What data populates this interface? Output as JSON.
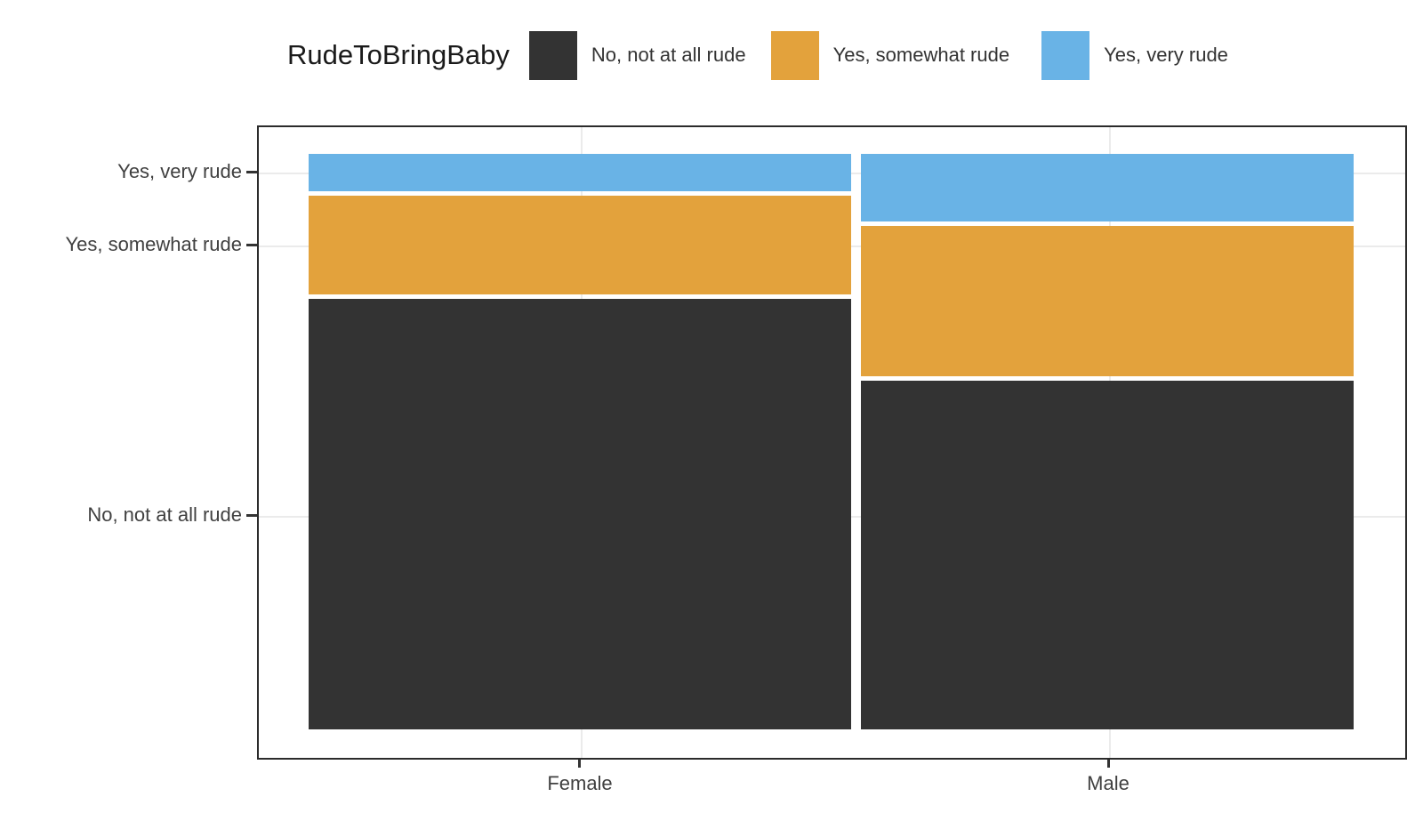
{
  "legend": {
    "title": "RudeToBringBaby",
    "items": [
      {
        "label": "No, not at all rude",
        "color": "#333333"
      },
      {
        "label": "Yes, somewhat rude",
        "color": "#E3A23C"
      },
      {
        "label": "Yes, very rude",
        "color": "#69B3E6"
      }
    ]
  },
  "axes": {
    "y_tick_labels": [
      "Yes, very rude",
      "Yes, somewhat rude",
      "No, not at all rude"
    ],
    "x_tick_labels": [
      "Female",
      "Male"
    ]
  },
  "chart_data": {
    "type": "mosaic",
    "title": "",
    "legend_title": "RudeToBringBaby",
    "legend_position": "top",
    "grid": true,
    "categories": [
      "Female",
      "Male"
    ],
    "fill_levels_top_to_bottom": [
      "Yes, very rude",
      "Yes, somewhat rude",
      "No, not at all rude"
    ],
    "colors": {
      "no_not_at_all_rude": "#333333",
      "yes_somewhat_rude": "#E3A23C",
      "yes_very_rude": "#69B3E6"
    },
    "columns": [
      {
        "category": "Female",
        "width_share": 0.524,
        "segments": [
          {
            "label": "Yes, very rude",
            "proportion": 0.066,
            "color": "#69B3E6"
          },
          {
            "label": "Yes, somewhat rude",
            "proportion": 0.174,
            "color": "#E3A23C"
          },
          {
            "label": "No, not at all rude",
            "proportion": 0.76,
            "color": "#333333"
          }
        ]
      },
      {
        "category": "Male",
        "width_share": 0.476,
        "segments": [
          {
            "label": "Yes, very rude",
            "proportion": 0.12,
            "color": "#69B3E6"
          },
          {
            "label": "Yes, somewhat rude",
            "proportion": 0.264,
            "color": "#E3A23C"
          },
          {
            "label": "No, not at all rude",
            "proportion": 0.616,
            "color": "#333333"
          }
        ]
      }
    ]
  }
}
